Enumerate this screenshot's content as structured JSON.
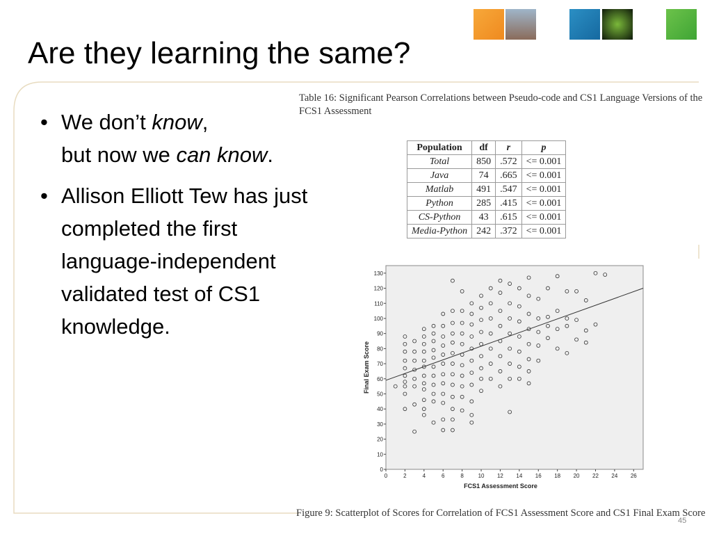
{
  "title": "Are they learning the same?",
  "bullets": [
    [
      "We don’t ",
      "know",
      ",",
      "but now we ",
      "can know",
      "."
    ],
    [
      "Allison Elliott Tew has just completed the first language-independent validated test of CS1 knowledge."
    ]
  ],
  "table": {
    "caption": "Table 16: Significant Pearson Correlations between Pseudo-code and CS1 Language Versions of the FCS1 Assessment",
    "header": [
      "Population",
      "df",
      "r",
      "p"
    ],
    "rows": [
      [
        "Total",
        "850",
        ".572",
        "<= 0.001"
      ],
      [
        "Java",
        "74",
        ".665",
        "<= 0.001"
      ],
      [
        "Matlab",
        "491",
        ".547",
        "<= 0.001"
      ],
      [
        "Python",
        "285",
        ".415",
        "<= 0.001"
      ],
      [
        "CS-Python",
        "43",
        ".615",
        "<= 0.001"
      ],
      [
        "Media-Python",
        "242",
        ".372",
        "<= 0.001"
      ]
    ]
  },
  "chart_data": {
    "type": "scatter",
    "x_label": "FCS1 Assessment Score",
    "y_label": "Final Exam Score",
    "xlim": [
      0,
      27
    ],
    "ylim": [
      0,
      135
    ],
    "xticks": [
      0,
      2,
      4,
      6,
      8,
      10,
      12,
      14,
      16,
      18,
      20,
      22,
      24,
      26
    ],
    "yticks": [
      0,
      10,
      20,
      30,
      40,
      50,
      60,
      70,
      80,
      90,
      100,
      110,
      120,
      130
    ],
    "color": "#333333",
    "fit": {
      "intercept": 59,
      "slope": 2.26
    },
    "x": [
      1,
      2,
      2,
      2,
      2,
      2,
      2,
      2,
      2,
      2,
      2,
      3,
      3,
      3,
      3,
      3,
      3,
      3,
      3,
      4,
      4,
      4,
      4,
      4,
      4,
      4,
      4,
      4,
      4,
      4,
      4,
      5,
      5,
      5,
      5,
      5,
      5,
      5,
      5,
      5,
      5,
      5,
      6,
      6,
      6,
      6,
      6,
      6,
      6,
      6,
      6,
      6,
      6,
      6,
      7,
      7,
      7,
      7,
      7,
      7,
      7,
      7,
      7,
      7,
      7,
      7,
      7,
      8,
      8,
      8,
      8,
      8,
      8,
      8,
      8,
      8,
      8,
      8,
      9,
      9,
      9,
      9,
      9,
      9,
      9,
      9,
      9,
      9,
      9,
      10,
      10,
      10,
      10,
      10,
      10,
      10,
      10,
      10,
      11,
      11,
      11,
      11,
      11,
      11,
      11,
      12,
      12,
      12,
      12,
      12,
      12,
      12,
      12,
      13,
      13,
      13,
      13,
      13,
      13,
      13,
      13,
      14,
      14,
      14,
      14,
      14,
      14,
      14,
      15,
      15,
      15,
      15,
      15,
      15,
      15,
      15,
      16,
      16,
      16,
      16,
      16,
      17,
      17,
      17,
      17,
      18,
      18,
      18,
      18,
      19,
      19,
      19,
      19,
      20,
      20,
      20,
      21,
      21,
      21,
      22,
      22,
      23
    ],
    "values": [
      55,
      88,
      83,
      78,
      72,
      67,
      62,
      58,
      55,
      50,
      40,
      85,
      78,
      72,
      66,
      60,
      55,
      43,
      25,
      93,
      88,
      83,
      78,
      72,
      68,
      62,
      57,
      53,
      46,
      40,
      36,
      95,
      90,
      85,
      79,
      74,
      68,
      62,
      56,
      50,
      45,
      31,
      103,
      95,
      88,
      82,
      76,
      70,
      63,
      57,
      50,
      44,
      33,
      26,
      125,
      105,
      97,
      90,
      84,
      77,
      70,
      63,
      56,
      48,
      40,
      33,
      26,
      118,
      105,
      97,
      90,
      83,
      76,
      69,
      62,
      55,
      48,
      39,
      110,
      103,
      96,
      88,
      80,
      72,
      64,
      56,
      45,
      36,
      31,
      115,
      107,
      99,
      91,
      83,
      75,
      67,
      60,
      52,
      120,
      110,
      100,
      90,
      80,
      70,
      60,
      125,
      117,
      105,
      95,
      85,
      75,
      65,
      55,
      123,
      110,
      100,
      90,
      80,
      70,
      60,
      38,
      120,
      108,
      98,
      88,
      78,
      68,
      60,
      127,
      115,
      103,
      93,
      83,
      73,
      65,
      57,
      113,
      100,
      91,
      82,
      72,
      120,
      101,
      95,
      87,
      128,
      105,
      93,
      80,
      118,
      100,
      95,
      77,
      118,
      99,
      86,
      112,
      92,
      84,
      130,
      96,
      129
    ]
  },
  "figure_caption": "Figure 9: Scatterplot of Scores for Correlation of FCS1 Assessment Score and CS1 Final Exam Score",
  "page_number": "45"
}
